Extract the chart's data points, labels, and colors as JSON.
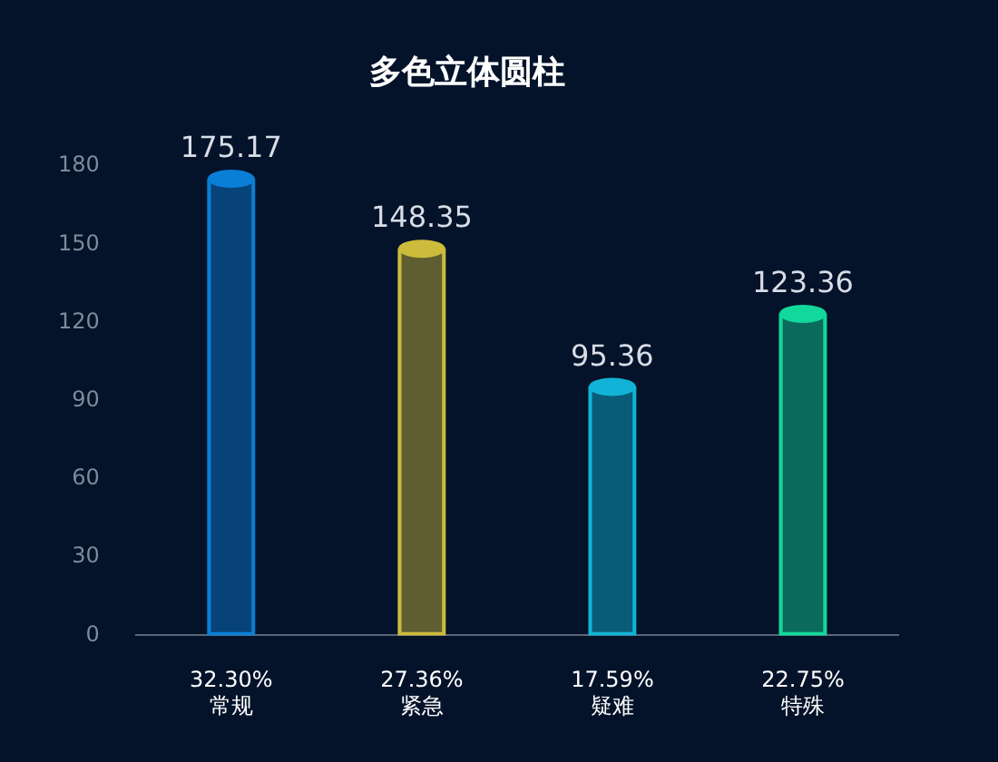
{
  "chart_data": {
    "type": "bar",
    "title": "多色立体圆柱",
    "categories": [
      "32.30%\n常规",
      "27.36%\n紧急",
      "17.59%\n疑难",
      "22.75%\n特殊"
    ],
    "values": [
      175.17,
      148.35,
      95.36,
      123.36
    ],
    "colors": [
      "#0a7fd6",
      "#cdbb3c",
      "#11b3d6",
      "#12d89c"
    ],
    "ylim": [
      0,
      180
    ],
    "yticks": [
      0,
      30,
      60,
      90,
      120,
      150,
      180
    ],
    "grid": false,
    "legend": false,
    "data_labels": true
  }
}
